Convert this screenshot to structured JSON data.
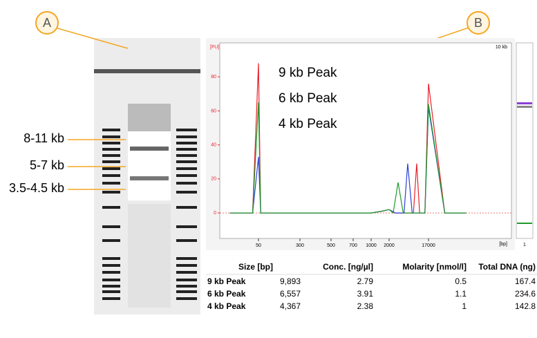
{
  "callouts": [
    "A",
    "B"
  ],
  "gel": {
    "labels": [
      "8-11 kb",
      "5-7 kb",
      "3.5-4.5 kb"
    ]
  },
  "chart_data": {
    "type": "line",
    "y_label": "[FU]",
    "x_label": "[bp]",
    "annotation": "10 kb",
    "xlim": [
      25,
      30000
    ],
    "ylim": [
      -15,
      100
    ],
    "xticks": [
      50,
      300,
      500,
      700,
      1000,
      2000,
      17000
    ],
    "yticks": [
      0,
      20,
      40,
      60,
      80
    ],
    "series": [
      {
        "name": "9 kb Peak",
        "color": "#e8202a",
        "x": [
          30,
          45,
          50,
          55,
          300,
          1000,
          1500,
          2000,
          2800,
          4000,
          7500,
          8950,
          10500,
          14000,
          17000,
          19000,
          22000
        ],
        "values": [
          0,
          0,
          88,
          0,
          0,
          0,
          1,
          2,
          0,
          0,
          0,
          29,
          0,
          0,
          76,
          0,
          0
        ]
      },
      {
        "name": "6 kb Peak",
        "color": "#2a3fd8",
        "x": [
          30,
          45,
          50,
          55,
          300,
          1000,
          1500,
          2000,
          2800,
          4500,
          5500,
          7000,
          14000,
          17000,
          19000,
          22000
        ],
        "values": [
          0,
          0,
          33,
          0,
          0,
          0,
          1,
          2,
          0,
          0,
          29,
          0,
          0,
          62,
          0,
          0
        ]
      },
      {
        "name": "4 kb Peak",
        "color": "#1e9a2a",
        "x": [
          30,
          45,
          50,
          55,
          300,
          1000,
          1500,
          2000,
          2500,
          3260,
          4300,
          14000,
          17000,
          19000,
          22000
        ],
        "values": [
          0,
          0,
          65,
          0,
          0,
          0,
          1,
          2,
          0,
          18,
          0,
          0,
          64,
          0,
          0
        ]
      }
    ]
  },
  "table": {
    "header": [
      "Size [bp]",
      "Conc. [ng/µl]",
      "Molarity [nmol/l]",
      "Total DNA (ng)"
    ],
    "rows": [
      [
        "9 kb Peak",
        "9,893",
        "2.79",
        "0.5",
        "167.4"
      ],
      [
        "6 kb Peak",
        "6,557",
        "3.91",
        "1.1",
        "234.6"
      ],
      [
        "4 kb Peak",
        "4,367",
        "2.38",
        "1",
        "142.8"
      ]
    ]
  },
  "lane_label": "1"
}
